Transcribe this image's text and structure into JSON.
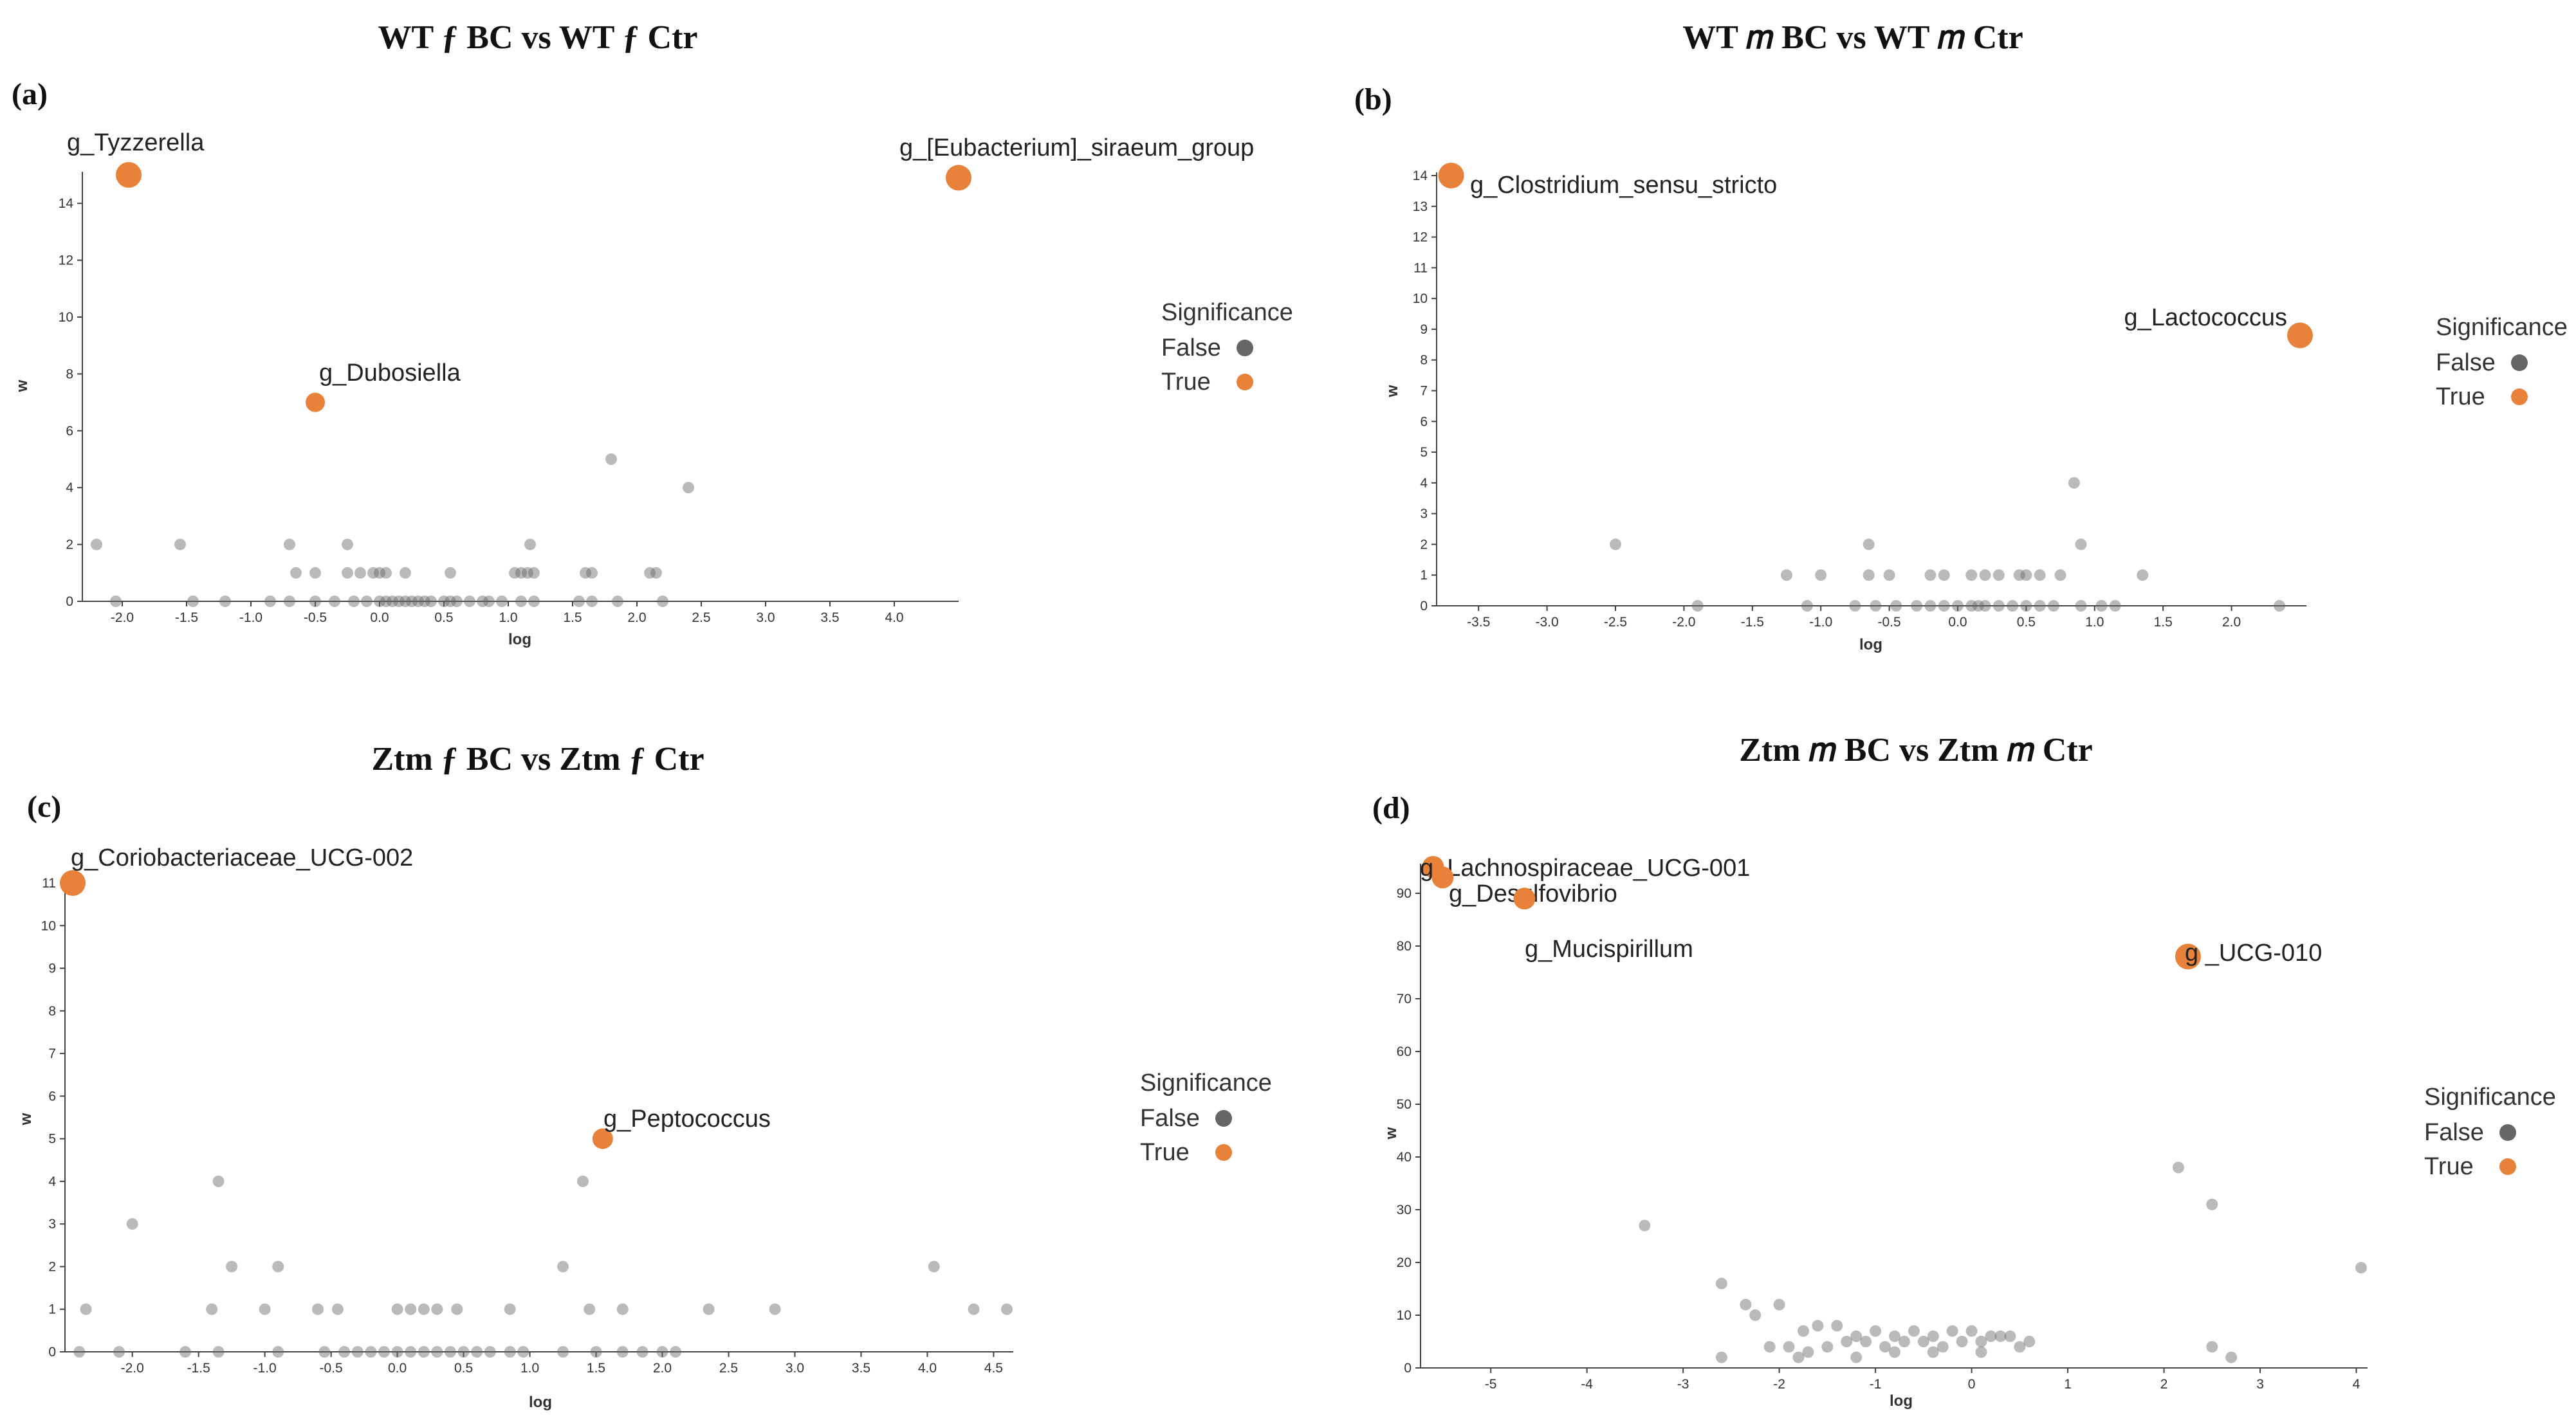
{
  "chart_data": [
    {
      "type": "scatter",
      "panel_label": "(a)",
      "title": "WT ƒ BC vs WT ƒ Ctr",
      "xlabel": "log",
      "ylabel": "w",
      "x_ticks": [
        "-2.0",
        "-1.5",
        "-1.0",
        "-0.5",
        "0.0",
        "0.5",
        "1.0",
        "1.5",
        "2.0",
        "2.5",
        "3.0",
        "3.5",
        "4.0"
      ],
      "y_ticks": [
        "0",
        "2",
        "4",
        "6",
        "8",
        "10",
        "12",
        "14"
      ],
      "xlim": [
        -2.25,
        4.45
      ],
      "ylim": [
        0,
        15
      ],
      "legend": {
        "title": "Significance",
        "entries": [
          "False",
          "True"
        ],
        "colors": [
          "#666666",
          "#E8823A"
        ]
      },
      "significant": [
        {
          "label": "g_Tyzzerella",
          "x": -1.95,
          "y": 15
        },
        {
          "label": "g_[Eubacterium]_siraeum_group",
          "x": 4.5,
          "y": 14.9
        },
        {
          "label": "g_Dubosiella",
          "x": -0.5,
          "y": 7
        }
      ],
      "points": [
        [
          -2.2,
          2
        ],
        [
          -1.55,
          2
        ],
        [
          -0.7,
          2
        ],
        [
          -0.25,
          2
        ],
        [
          1.17,
          2
        ],
        [
          1.8,
          5
        ],
        [
          2.4,
          4
        ],
        [
          -0.65,
          1
        ],
        [
          -0.5,
          1
        ],
        [
          -0.25,
          1
        ],
        [
          -0.15,
          1
        ],
        [
          -0.05,
          1
        ],
        [
          0.0,
          1
        ],
        [
          0.05,
          1
        ],
        [
          0.2,
          1
        ],
        [
          0.55,
          1
        ],
        [
          1.05,
          1
        ],
        [
          1.1,
          1
        ],
        [
          1.15,
          1
        ],
        [
          1.2,
          1
        ],
        [
          1.6,
          1
        ],
        [
          1.65,
          1
        ],
        [
          2.1,
          1
        ],
        [
          2.15,
          1
        ],
        [
          -2.05,
          0
        ],
        [
          -1.45,
          0
        ],
        [
          -1.2,
          0
        ],
        [
          -0.85,
          0
        ],
        [
          -0.7,
          0
        ],
        [
          -0.5,
          0
        ],
        [
          -0.35,
          0
        ],
        [
          -0.2,
          0
        ],
        [
          -0.1,
          0
        ],
        [
          0.0,
          0
        ],
        [
          0.05,
          0
        ],
        [
          0.1,
          0
        ],
        [
          0.15,
          0
        ],
        [
          0.2,
          0
        ],
        [
          0.25,
          0
        ],
        [
          0.3,
          0
        ],
        [
          0.35,
          0
        ],
        [
          0.4,
          0
        ],
        [
          0.5,
          0
        ],
        [
          0.55,
          0
        ],
        [
          0.6,
          0
        ],
        [
          0.7,
          0
        ],
        [
          0.8,
          0
        ],
        [
          0.85,
          0
        ],
        [
          0.95,
          0
        ],
        [
          1.1,
          0
        ],
        [
          1.2,
          0
        ],
        [
          1.55,
          0
        ],
        [
          1.65,
          0
        ],
        [
          1.85,
          0
        ],
        [
          2.2,
          0
        ]
      ]
    },
    {
      "type": "scatter",
      "panel_label": "(b)",
      "title": "WT 𝑚 BC vs WT 𝑚 Ctr",
      "xlabel": "log",
      "ylabel": "w",
      "x_ticks": [
        "-3.5",
        "-3.0",
        "-2.5",
        "-2.0",
        "-1.5",
        "-1.0",
        "-0.5",
        "0.0",
        "0.5",
        "1.0",
        "1.5",
        "2.0"
      ],
      "y_ticks": [
        "0",
        "1",
        "2",
        "3",
        "4",
        "5",
        "6",
        "7",
        "8",
        "9",
        "10",
        "11",
        "12",
        "13",
        "14"
      ],
      "xlim": [
        -3.75,
        2.5
      ],
      "ylim": [
        0,
        14
      ],
      "legend": {
        "title": "Significance",
        "entries": [
          "False",
          "True"
        ],
        "colors": [
          "#666666",
          "#E8823A"
        ]
      },
      "significant": [
        {
          "label": "g_Clostridium_sensu_stricto",
          "x": -3.7,
          "y": 14
        },
        {
          "label": "g_Lactococcus",
          "x": 2.5,
          "y": 8.8
        }
      ],
      "points": [
        [
          -2.5,
          2
        ],
        [
          -0.65,
          2
        ],
        [
          0.85,
          4
        ],
        [
          0.9,
          2
        ],
        [
          -1.25,
          1
        ],
        [
          -1.0,
          1
        ],
        [
          -0.65,
          1
        ],
        [
          -0.5,
          1
        ],
        [
          -0.2,
          1
        ],
        [
          -0.1,
          1
        ],
        [
          0.1,
          1
        ],
        [
          0.2,
          1
        ],
        [
          0.3,
          1
        ],
        [
          0.45,
          1
        ],
        [
          0.5,
          1
        ],
        [
          0.6,
          1
        ],
        [
          0.75,
          1
        ],
        [
          1.35,
          1
        ],
        [
          -1.9,
          0
        ],
        [
          -1.1,
          0
        ],
        [
          -0.75,
          0
        ],
        [
          -0.6,
          0
        ],
        [
          -0.45,
          0
        ],
        [
          -0.3,
          0
        ],
        [
          -0.2,
          0
        ],
        [
          -0.1,
          0
        ],
        [
          0.0,
          0
        ],
        [
          0.1,
          0
        ],
        [
          0.15,
          0
        ],
        [
          0.2,
          0
        ],
        [
          0.3,
          0
        ],
        [
          0.4,
          0
        ],
        [
          0.5,
          0
        ],
        [
          0.6,
          0
        ],
        [
          0.7,
          0
        ],
        [
          0.9,
          0
        ],
        [
          1.05,
          0
        ],
        [
          1.15,
          0
        ],
        [
          2.35,
          0
        ]
      ]
    },
    {
      "type": "scatter",
      "panel_label": "(c)",
      "title": "Ztm ƒ BC vs Ztm ƒ Ctr",
      "xlabel": "log",
      "ylabel": "w",
      "x_ticks": [
        "-2.0",
        "-1.5",
        "-1.0",
        "-0.5",
        "0.0",
        "0.5",
        "1.0",
        "1.5",
        "2.0",
        "2.5",
        "3.0",
        "3.5",
        "4.0",
        "4.5"
      ],
      "y_ticks": [
        "0",
        "1",
        "2",
        "3",
        "4",
        "5",
        "6",
        "7",
        "8",
        "9",
        "10",
        "11"
      ],
      "xlim": [
        -2.45,
        4.6
      ],
      "ylim": [
        0,
        11
      ],
      "legend": {
        "title": "Significance",
        "entries": [
          "False",
          "True"
        ],
        "colors": [
          "#666666",
          "#E8823A"
        ]
      },
      "significant": [
        {
          "label": "g_Coriobacteriaceae_UCG-002",
          "x": -2.45,
          "y": 11
        },
        {
          "label": "g_Peptococcus",
          "x": 1.55,
          "y": 5
        }
      ],
      "points": [
        [
          -1.35,
          4
        ],
        [
          1.4,
          4
        ],
        [
          -2.0,
          3
        ],
        [
          -1.25,
          2
        ],
        [
          -0.9,
          2
        ],
        [
          1.25,
          2
        ],
        [
          4.05,
          2
        ],
        [
          -2.35,
          1
        ],
        [
          -1.4,
          1
        ],
        [
          -1.0,
          1
        ],
        [
          -0.6,
          1
        ],
        [
          -0.45,
          1
        ],
        [
          0.0,
          1
        ],
        [
          0.1,
          1
        ],
        [
          0.2,
          1
        ],
        [
          0.3,
          1
        ],
        [
          0.45,
          1
        ],
        [
          0.85,
          1
        ],
        [
          1.45,
          1
        ],
        [
          1.7,
          1
        ],
        [
          2.35,
          1
        ],
        [
          2.85,
          1
        ],
        [
          4.35,
          1
        ],
        [
          4.6,
          1
        ],
        [
          -2.4,
          0
        ],
        [
          -2.1,
          0
        ],
        [
          -1.6,
          0
        ],
        [
          -1.35,
          0
        ],
        [
          -0.9,
          0
        ],
        [
          -0.55,
          0
        ],
        [
          -0.4,
          0
        ],
        [
          -0.3,
          0
        ],
        [
          -0.2,
          0
        ],
        [
          -0.1,
          0
        ],
        [
          0.0,
          0
        ],
        [
          0.1,
          0
        ],
        [
          0.2,
          0
        ],
        [
          0.3,
          0
        ],
        [
          0.4,
          0
        ],
        [
          0.5,
          0
        ],
        [
          0.6,
          0
        ],
        [
          0.7,
          0
        ],
        [
          0.85,
          0
        ],
        [
          0.95,
          0
        ],
        [
          1.25,
          0
        ],
        [
          1.5,
          0
        ],
        [
          1.7,
          0
        ],
        [
          1.85,
          0
        ],
        [
          2.0,
          0
        ],
        [
          2.1,
          0
        ]
      ]
    },
    {
      "type": "scatter",
      "panel_label": "(d)",
      "title": "Ztm 𝑚 BC vs Ztm 𝑚 Ctr",
      "xlabel": "log",
      "ylabel": "w",
      "x_ticks": [
        "-5",
        "-4",
        "-3",
        "-2",
        "-1",
        "0",
        "1",
        "2",
        "3",
        "4"
      ],
      "y_ticks": [
        "0",
        "10",
        "20",
        "30",
        "40",
        "50",
        "60",
        "70",
        "80",
        "90"
      ],
      "xlim": [
        -5.65,
        4.05
      ],
      "ylim": [
        0,
        95
      ],
      "legend": {
        "title": "Significance",
        "entries": [
          "False",
          "True"
        ],
        "colors": [
          "#666666",
          "#E8823A"
        ]
      },
      "significant": [
        {
          "label": "g_Lachnospiraceae_UCG-001",
          "x": -5.6,
          "y": 95
        },
        {
          "label": "g_Desulfovibrio",
          "x": -5.5,
          "y": 93
        },
        {
          "label": "g_Mucispirillum",
          "x": -4.65,
          "y": 89
        },
        {
          "label": "g _UCG-010",
          "x": 2.25,
          "y": 78
        }
      ],
      "points": [
        [
          -3.4,
          27
        ],
        [
          2.15,
          38
        ],
        [
          2.5,
          31
        ],
        [
          4.05,
          19
        ],
        [
          -2.6,
          16
        ],
        [
          -2.35,
          12
        ],
        [
          -2.25,
          10
        ],
        [
          -2.0,
          12
        ],
        [
          -1.75,
          7
        ],
        [
          -1.6,
          8
        ],
        [
          -1.4,
          8
        ],
        [
          -1.2,
          6
        ],
        [
          -1.0,
          7
        ],
        [
          -0.8,
          6
        ],
        [
          -0.6,
          7
        ],
        [
          -0.4,
          6
        ],
        [
          -0.2,
          7
        ],
        [
          0.0,
          7
        ],
        [
          0.2,
          6
        ],
        [
          0.4,
          6
        ],
        [
          0.6,
          5
        ],
        [
          -2.1,
          4
        ],
        [
          -1.9,
          4
        ],
        [
          -1.7,
          3
        ],
        [
          -1.5,
          4
        ],
        [
          -1.3,
          5
        ],
        [
          -1.1,
          5
        ],
        [
          -0.9,
          4
        ],
        [
          -0.7,
          5
        ],
        [
          -0.5,
          5
        ],
        [
          -0.3,
          4
        ],
        [
          -0.1,
          5
        ],
        [
          0.1,
          5
        ],
        [
          0.3,
          6
        ],
        [
          0.5,
          4
        ],
        [
          -2.6,
          2
        ],
        [
          -1.8,
          2
        ],
        [
          -1.2,
          2
        ],
        [
          -0.8,
          3
        ],
        [
          -0.4,
          3
        ],
        [
          0.1,
          3
        ],
        [
          2.5,
          4
        ],
        [
          2.7,
          2
        ]
      ]
    }
  ]
}
